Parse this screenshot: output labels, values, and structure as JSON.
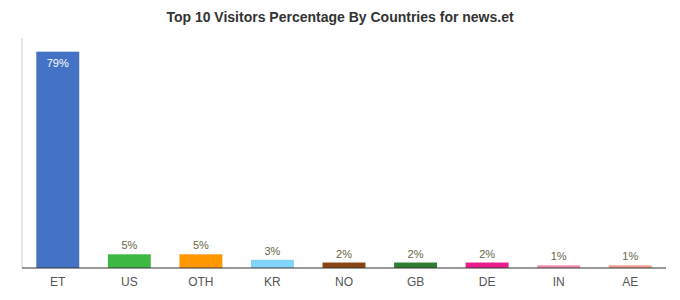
{
  "chart_data": {
    "type": "bar",
    "title": "Top 10 Visitors Percentage By Countries for news.et",
    "categories": [
      "ET",
      "US",
      "OTH",
      "KR",
      "NO",
      "GB",
      "DE",
      "IN",
      "AE"
    ],
    "values": [
      79,
      5,
      5,
      3,
      2,
      2,
      2,
      1,
      1
    ],
    "value_labels": [
      "79%",
      "5%",
      "5%",
      "3%",
      "2%",
      "2%",
      "2%",
      "1%",
      "1%"
    ],
    "colors": [
      "#4472c4",
      "#3db843",
      "#FF9800",
      "#81D4FA",
      "#8B4513",
      "#2E7D32",
      "#E91E8C",
      "#F48FB1",
      "#F4A090"
    ],
    "ylim": [
      0,
      84
    ],
    "data_labels": true,
    "grid": false,
    "tick_labels": "x"
  }
}
